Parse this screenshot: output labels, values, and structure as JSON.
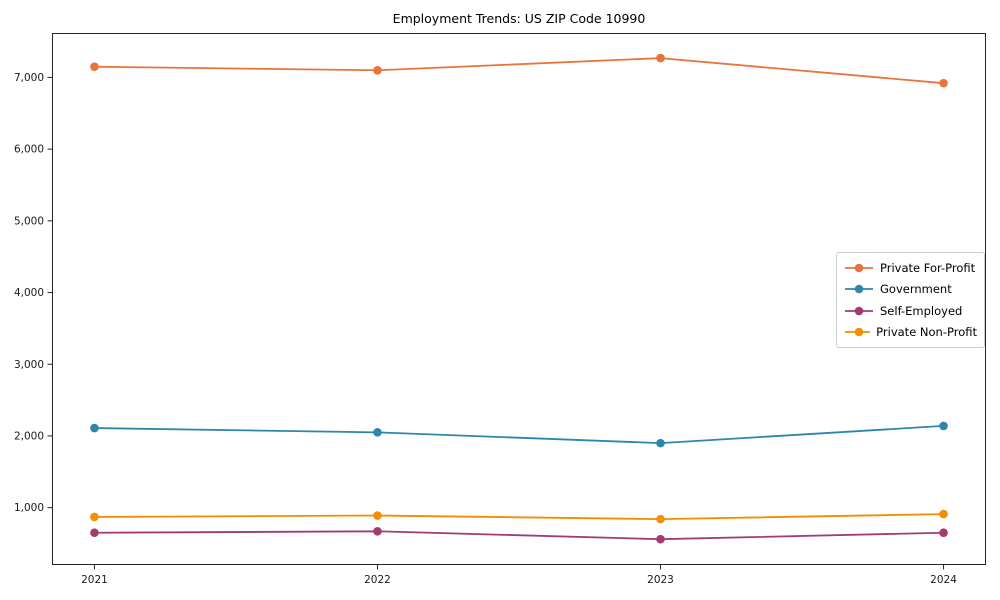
{
  "chart_data": {
    "type": "line",
    "title": "Employment Trends: US ZIP Code 10990",
    "x": [
      2021,
      2022,
      2023,
      2024
    ],
    "x_tick_labels": [
      "2021",
      "2022",
      "2023",
      "2024"
    ],
    "series": [
      {
        "name": "Private For-Profit",
        "color": "#E8743B",
        "values": [
          7150,
          7100,
          7270,
          6920
        ]
      },
      {
        "name": "Government",
        "color": "#2E86AB",
        "values": [
          2110,
          2050,
          1900,
          2140
        ]
      },
      {
        "name": "Self-Employed",
        "color": "#A23B72",
        "values": [
          650,
          670,
          560,
          650
        ]
      },
      {
        "name": "Private Non-Profit",
        "color": "#F18F01",
        "values": [
          870,
          890,
          840,
          910
        ]
      }
    ],
    "y_ticks": [
      1000,
      2000,
      3000,
      4000,
      5000,
      6000,
      7000
    ],
    "y_tick_labels": [
      "1,000",
      "2,000",
      "3,000",
      "4,000",
      "5,000",
      "6,000",
      "7,000"
    ],
    "xlim": [
      2020.85,
      2024.15
    ],
    "ylim": [
      200,
      7620
    ],
    "grid": false,
    "legend_position": "center right",
    "marker": "circle",
    "frame_color": "#262626"
  }
}
